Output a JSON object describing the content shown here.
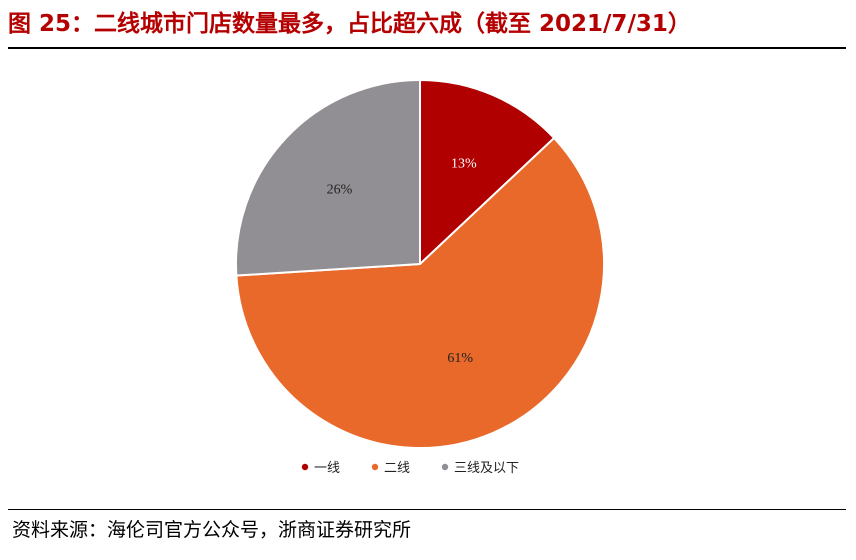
{
  "title": "图 25：二线城市门店数量最多，占比超六成（截至 2021/7/31）",
  "source": "资料来源：海伦司官方公众号，浙商证券研究所",
  "colors": {
    "title": "#b40000",
    "label_light": "#ffffff",
    "label_dark": "#222222"
  },
  "chart_data": {
    "type": "pie",
    "title": "图 25：二线城市门店数量最多，占比超六成（截至 2021/7/31）",
    "slices": [
      {
        "name": "一线",
        "value": 13,
        "label": "13%",
        "color": "#b00000"
      },
      {
        "name": "二线",
        "value": 61,
        "label": "61%",
        "color": "#e8692a"
      },
      {
        "name": "三线及以下",
        "value": 26,
        "label": "26%",
        "color": "#918f93"
      }
    ],
    "start_angle": "12 o'clock",
    "direction": "clockwise",
    "legend_position": "bottom"
  }
}
